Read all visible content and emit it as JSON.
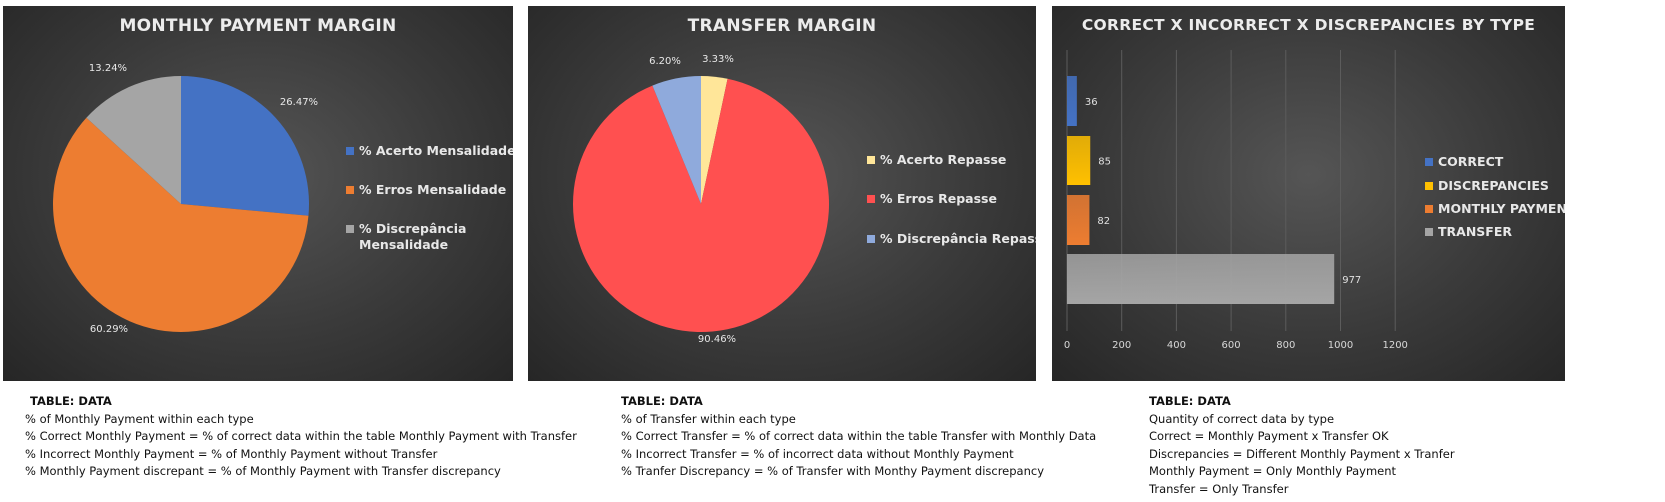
{
  "colors": {
    "panel_bg": "#3a3a3a",
    "correct_monthly": "#4472c4",
    "errors_monthly": "#ed7d31",
    "discrepancy_monthly": "#a5a5a5",
    "correct_transfer": "#ffe699",
    "errors_transfer": "#ff5050",
    "discrepancy_transfer": "#8faadc",
    "bar_correct": "#4472c4",
    "bar_discrepancies": "#ffc000",
    "bar_monthly": "#ed7d31",
    "bar_transfer": "#a5a5a5"
  },
  "chart_data": [
    {
      "type": "pie",
      "title": "MONTHLY PAYMENT MARGIN",
      "legend_position": "right",
      "slices": [
        {
          "label": "% Acerto Mensalidade",
          "value": 26.47,
          "display": "26.47%",
          "color": "#4472c4"
        },
        {
          "label": "% Erros Mensalidade",
          "value": 60.29,
          "display": "60.29%",
          "color": "#ed7d31"
        },
        {
          "label": "% Discrepância Mensalidade",
          "value": 13.24,
          "display": "13.24%",
          "color": "#a5a5a5"
        }
      ]
    },
    {
      "type": "pie",
      "title": "TRANSFER MARGIN",
      "legend_position": "right",
      "slices": [
        {
          "label": "% Acerto Repasse",
          "value": 3.33,
          "display": "3.33%",
          "color": "#ffe699"
        },
        {
          "label": "% Erros Repasse",
          "value": 90.46,
          "display": "90.46%",
          "color": "#ff5050"
        },
        {
          "label": "% Discrepância Repasse",
          "value": 6.2,
          "display": "6.20%",
          "color": "#8faadc"
        }
      ]
    },
    {
      "type": "bar",
      "orientation": "horizontal",
      "title": "CORRECT X INCORRECT X DISCREPANCIES BY TYPE",
      "legend_position": "right",
      "xlim": [
        0,
        1200
      ],
      "xticks": [
        "0",
        "200",
        "400",
        "600",
        "800",
        "1000",
        "1200"
      ],
      "grid": true,
      "series": [
        {
          "name": "CORRECT",
          "value": 36,
          "color": "#4472c4"
        },
        {
          "name": "DISCREPANCIES",
          "value": 85,
          "color": "#ffc000"
        },
        {
          "name": "MONTHLY PAYMENT",
          "value": 82,
          "color": "#ed7d31"
        },
        {
          "name": "TRANSFER",
          "value": 977,
          "color": "#a5a5a5"
        }
      ]
    }
  ],
  "notes": [
    {
      "title": "TABLE: DATA",
      "lines": [
        "% of Monthly Payment within each type",
        "% Correct Monthly Payment = % of correct data within the table Monthly Payment with Transfer",
        "% Incorrect Monthly Payment = % of Monthly Payment without Transfer",
        "% Monthly Payment discrepant = % of Monthly Payment with Transfer discrepancy"
      ]
    },
    {
      "title": "TABLE: DATA",
      "lines": [
        "% of Transfer within each type",
        "% Correct Transfer = % of correct data within the table Transfer with Monthly Data",
        "% Incorrect Transfer = % of incorrect data without Monthly Payment",
        "% Tranfer Discrepancy = % of Transfer with Monthy Payment discrepancy"
      ]
    },
    {
      "title": "TABLE: DATA",
      "lines": [
        "Quantity of correct data by type",
        "Correct = Monthly Payment x Transfer OK",
        "Discrepancies = Different Monthly Payment x Tranfer",
        "Monthly Payment = Only Monthly Payment",
        "Transfer = Only Transfer"
      ]
    }
  ]
}
